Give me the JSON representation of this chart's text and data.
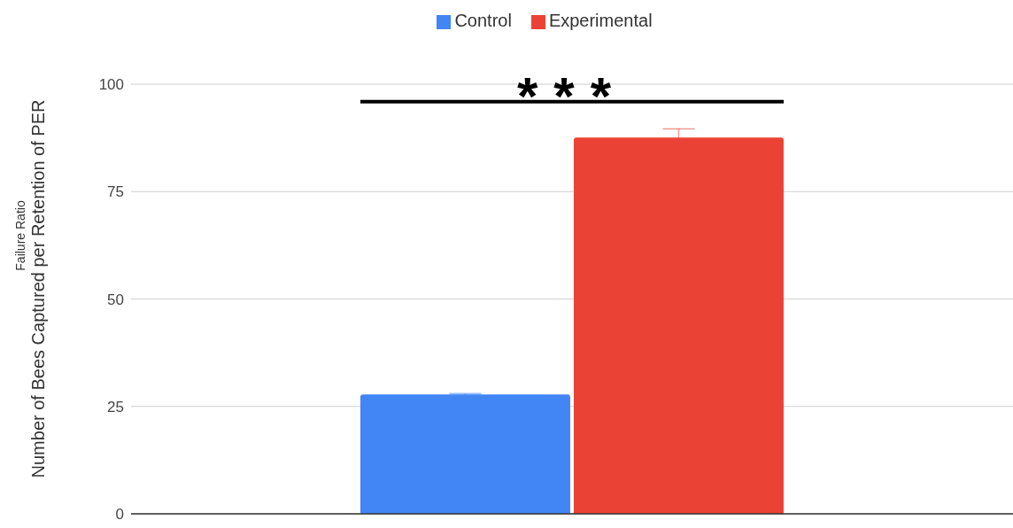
{
  "chart_data": {
    "type": "bar",
    "ylabel": "Number of Bees Captured per Retention of PER",
    "categories": [
      null
    ],
    "series": [
      {
        "name": "Control",
        "color": "#4285f4",
        "values": [
          27.8
        ],
        "errors": [
          0.2
        ]
      },
      {
        "name": "Experimental",
        "color": "#ea4335",
        "values": [
          87.6
        ],
        "errors": [
          2
        ]
      }
    ],
    "ylim": [
      0,
      100
    ],
    "yticks": [
      0,
      25,
      50,
      75,
      100
    ],
    "grid": "y",
    "legend": "top",
    "tick_labels": "y",
    "annotations": [
      "Failure Ratio",
      "***"
    ]
  }
}
